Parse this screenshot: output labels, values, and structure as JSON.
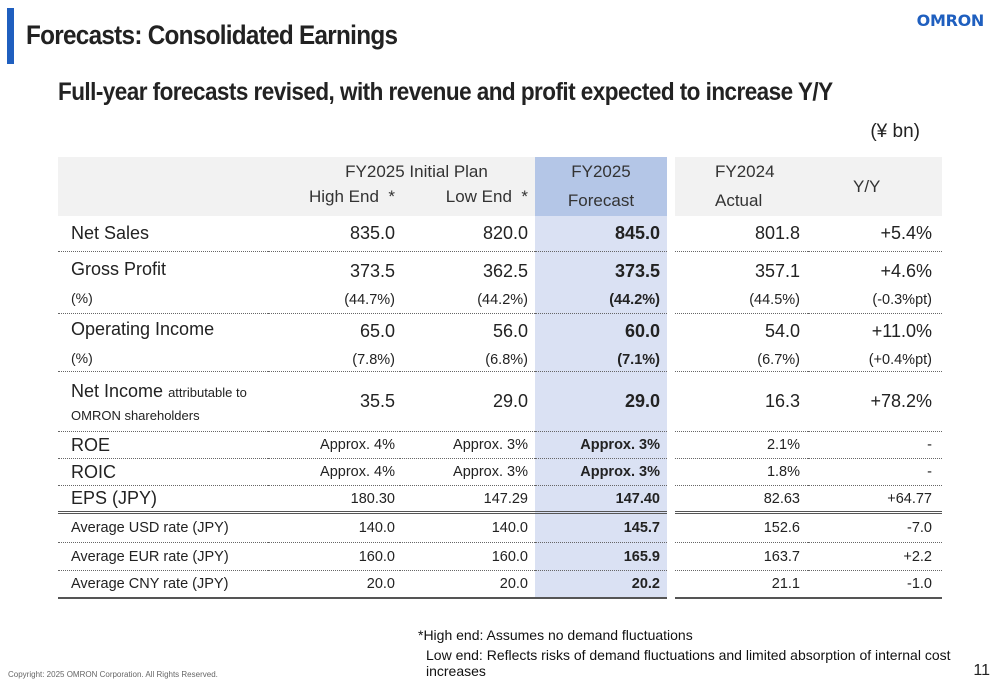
{
  "header": {
    "title": "Forecasts: Consolidated Earnings",
    "logo": "OMRON"
  },
  "subtitle": "Full-year forecasts revised, with revenue and profit expected to increase Y/Y",
  "unit": "(¥ bn)",
  "table": {
    "head": {
      "initial_plan": "FY2025 Initial Plan",
      "high": "High End  *",
      "low": "Low End  *",
      "fc1": "FY2025",
      "fc2": "Forecast",
      "act1": "FY2024",
      "act2": "Actual",
      "yy": "Y/Y"
    },
    "rows": [
      {
        "label": "Net Sales",
        "v": [
          "835.0",
          "820.0",
          "845.0",
          "801.8",
          "+5.4%"
        ]
      },
      {
        "label": "Gross Profit",
        "sub": "(%)",
        "v": [
          "373.5",
          "362.5",
          "373.5",
          "357.1",
          "+4.6%"
        ],
        "s": [
          "(44.7%)",
          "(44.2%)",
          "(44.2%)",
          "(44.5%)",
          "(-0.3%pt)"
        ]
      },
      {
        "label": "Operating Income",
        "sub": "(%)",
        "v": [
          "65.0",
          "56.0",
          "60.0",
          "54.0",
          "+11.0%"
        ],
        "s": [
          "(7.8%)",
          "(6.8%)",
          "(7.1%)",
          "(6.7%)",
          "(+0.4%pt)"
        ]
      },
      {
        "label": "Net Income",
        "label_small": "attributable to",
        "sub": "OMRON shareholders",
        "v": [
          "35.5",
          "29.0",
          "29.0",
          "16.3",
          "+78.2%"
        ]
      },
      {
        "label": "ROE",
        "v": [
          "Approx. 4%",
          "Approx. 3%",
          "Approx. 3%",
          "2.1%",
          "-"
        ]
      },
      {
        "label": "ROIC",
        "v": [
          "Approx. 4%",
          "Approx. 3%",
          "Approx. 3%",
          "1.8%",
          "-"
        ]
      },
      {
        "label": "EPS (JPY)",
        "v": [
          "180.30",
          "147.29",
          "147.40",
          "82.63",
          "+64.77"
        ]
      },
      {
        "label": "Average USD rate (JPY)",
        "v": [
          "140.0",
          "140.0",
          "145.7",
          "152.6",
          "-7.0"
        ]
      },
      {
        "label": "Average EUR rate (JPY)",
        "v": [
          "160.0",
          "160.0",
          "165.9",
          "163.7",
          "+2.2"
        ]
      },
      {
        "label": "Average CNY rate (JPY)",
        "v": [
          "20.0",
          "20.0",
          "20.2",
          "21.1",
          "-1.0"
        ]
      }
    ]
  },
  "notes": [
    "*High end: Assumes no demand fluctuations",
    "Low end: Reflects risks of demand fluctuations and limited absorption of internal cost increases"
  ],
  "footer": {
    "copyright": "Copyright: 2025 OMRON Corporation. All Rights Reserved.",
    "page": "11"
  }
}
